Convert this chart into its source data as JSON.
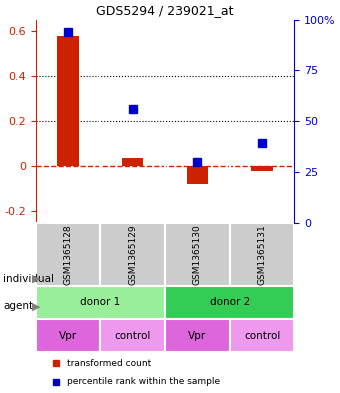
{
  "title": "GDS5294 / 239021_at",
  "samples": [
    "GSM1365128",
    "GSM1365129",
    "GSM1365130",
    "GSM1365131"
  ],
  "red_values": [
    0.58,
    0.035,
    -0.08,
    -0.02
  ],
  "blue_values": [
    0.595,
    0.255,
    0.02,
    0.105
  ],
  "ylim_left": [
    -0.25,
    0.65
  ],
  "ylim_right": [
    0,
    100
  ],
  "yticks_left": [
    -0.2,
    0.0,
    0.2,
    0.4,
    0.6
  ],
  "ytick_labels_left": [
    "-0.2",
    "0",
    "0.2",
    "0.4",
    "0.6"
  ],
  "yticks_right": [
    0,
    25,
    50,
    75,
    100
  ],
  "ytick_labels_right": [
    "0",
    "25",
    "50",
    "75",
    "100%"
  ],
  "hlines": [
    0.2,
    0.4
  ],
  "red_color": "#cc2200",
  "blue_color": "#0000cc",
  "dashed_line_y": 0.0,
  "individuals": [
    {
      "label": "donor 1",
      "span": [
        0,
        2
      ],
      "color": "#99ee99"
    },
    {
      "label": "donor 2",
      "span": [
        2,
        4
      ],
      "color": "#33cc55"
    }
  ],
  "agents": [
    {
      "label": "Vpr",
      "span": [
        0,
        1
      ],
      "color": "#dd66dd"
    },
    {
      "label": "control",
      "span": [
        1,
        2
      ],
      "color": "#ee99ee"
    },
    {
      "label": "Vpr",
      "span": [
        2,
        3
      ],
      "color": "#dd66dd"
    },
    {
      "label": "control",
      "span": [
        3,
        4
      ],
      "color": "#ee99ee"
    }
  ],
  "sample_box_color": "#cccccc",
  "bar_width": 0.35,
  "legend_red_label": "transformed count",
  "legend_blue_label": "percentile rank within the sample",
  "individual_label": "individual",
  "agent_label": "agent"
}
